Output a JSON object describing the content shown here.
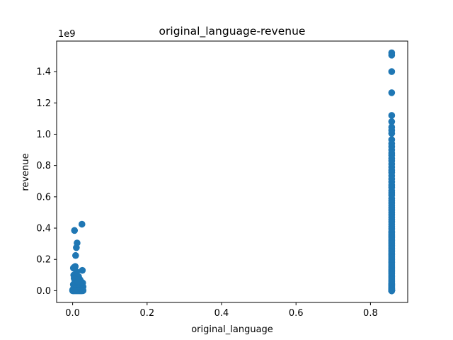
{
  "chart_data": {
    "type": "scatter",
    "title": "original_language-revenue",
    "xlabel": "original_language",
    "ylabel": "revenue",
    "y_multiplier_label": "1e9",
    "xlim": [
      -0.043,
      0.9
    ],
    "ylim": [
      -0.075,
      1.595
    ],
    "x_ticks": [
      0.0,
      0.2,
      0.4,
      0.6,
      0.8
    ],
    "x_tick_labels": [
      "0.0",
      "0.2",
      "0.4",
      "0.6",
      "0.8"
    ],
    "y_ticks": [
      0.0,
      0.2,
      0.4,
      0.6,
      0.8,
      1.0,
      1.2,
      1.4
    ],
    "y_tick_labels": [
      "0.0",
      "0.2",
      "0.4",
      "0.6",
      "0.8",
      "1.0",
      "1.2",
      "1.4"
    ],
    "grid": false,
    "marker_color": "#1f77b4",
    "y_unit_scale": 1000000000,
    "series": [
      {
        "x": [
          0.005,
          0.012,
          0.025,
          0.01,
          0.008,
          0.004,
          0.007,
          0.026,
          0.002,
          0.003,
          0.006,
          0.009,
          0.011,
          0.014,
          0.016,
          0.018,
          0.02,
          0.022,
          0.024,
          0.027,
          0.004,
          0.006,
          0.008,
          0.01,
          0.012,
          0.014,
          0.016,
          0.018,
          0.02,
          0.022,
          0.024,
          0.026,
          0.028,
          0.002,
          0.005,
          0.007,
          0.009,
          0.011,
          0.013,
          0.015,
          0.017,
          0.019,
          0.021,
          0.023,
          0.025,
          0.027,
          0.003,
          0.006,
          0.01,
          0.015,
          0.02,
          0.025,
          0.0,
          0.001,
          0.004,
          0.008,
          0.012,
          0.016,
          0.018,
          0.022,
          0.026,
          0.028,
          0.013,
          0.017,
          0.021,
          0.009,
          0.003,
          0.007,
          0.011,
          0.019,
          0.023,
          0.015,
          0.0,
          0.002,
          0.005,
          0.024,
          0.027,
          0.014
        ],
        "y": [
          0.385,
          0.305,
          0.425,
          0.275,
          0.225,
          0.15,
          0.155,
          0.13,
          0.145,
          0.1,
          0.095,
          0.11,
          0.12,
          0.085,
          0.09,
          0.075,
          0.07,
          0.06,
          0.055,
          0.05,
          0.08,
          0.065,
          0.072,
          0.058,
          0.045,
          0.04,
          0.048,
          0.038,
          0.035,
          0.03,
          0.032,
          0.028,
          0.025,
          0.04,
          0.035,
          0.03,
          0.025,
          0.022,
          0.02,
          0.018,
          0.016,
          0.015,
          0.014,
          0.012,
          0.01,
          0.009,
          0.02,
          0.015,
          0.012,
          0.01,
          0.008,
          0.006,
          0.005,
          0.004,
          0.003,
          0.002,
          0.001,
          0.002,
          0.004,
          0.006,
          0.003,
          0.001,
          0.0,
          0.0,
          0.0,
          0.0,
          0.0,
          0.0,
          0.0,
          0.0,
          0.0,
          0.0,
          0.0,
          0.0,
          0.0,
          0.0,
          0.0,
          0.06
        ]
      },
      {
        "x": [
          0.857,
          0.857,
          0.857,
          0.857,
          0.857,
          0.857,
          0.857,
          0.857,
          0.857,
          0.857,
          0.857,
          0.857,
          0.857,
          0.857,
          0.857,
          0.857,
          0.857,
          0.857,
          0.857,
          0.857,
          0.857,
          0.857,
          0.857,
          0.857,
          0.857,
          0.857,
          0.857,
          0.857,
          0.857,
          0.857,
          0.857,
          0.857,
          0.857,
          0.857,
          0.857,
          0.857,
          0.857,
          0.857,
          0.857,
          0.857,
          0.857,
          0.857,
          0.857,
          0.857,
          0.857,
          0.857,
          0.857,
          0.857,
          0.857,
          0.857,
          0.857,
          0.857,
          0.857,
          0.857,
          0.857,
          0.857,
          0.857,
          0.857,
          0.857,
          0.857,
          0.857,
          0.857,
          0.857,
          0.857,
          0.857,
          0.857,
          0.857,
          0.857,
          0.857,
          0.857,
          0.857,
          0.857,
          0.857,
          0.857,
          0.857,
          0.857,
          0.857,
          0.857,
          0.857,
          0.857,
          0.857,
          0.857,
          0.857,
          0.857,
          0.857,
          0.857,
          0.857,
          0.857,
          0.857,
          0.857,
          0.857,
          0.857,
          0.857,
          0.857,
          0.857,
          0.857
        ],
        "y": [
          1.52,
          1.505,
          1.4,
          1.265,
          1.12,
          1.08,
          1.045,
          1.025,
          1.005,
          0.965,
          0.94,
          0.92,
          0.9,
          0.88,
          0.865,
          0.845,
          0.83,
          0.81,
          0.79,
          0.77,
          0.755,
          0.735,
          0.715,
          0.695,
          0.675,
          0.66,
          0.64,
          0.625,
          0.61,
          0.59,
          0.575,
          0.56,
          0.545,
          0.53,
          0.515,
          0.5,
          0.485,
          0.47,
          0.455,
          0.44,
          0.425,
          0.41,
          0.395,
          0.38,
          0.37,
          0.36,
          0.35,
          0.34,
          0.33,
          0.32,
          0.31,
          0.3,
          0.29,
          0.28,
          0.27,
          0.26,
          0.25,
          0.24,
          0.23,
          0.22,
          0.21,
          0.2,
          0.19,
          0.18,
          0.17,
          0.16,
          0.15,
          0.14,
          0.13,
          0.12,
          0.11,
          0.1,
          0.09,
          0.08,
          0.07,
          0.06,
          0.05,
          0.045,
          0.04,
          0.035,
          0.03,
          0.025,
          0.02,
          0.016,
          0.012,
          0.008,
          0.005,
          0.003,
          0.001,
          0.0,
          0.0,
          0.0,
          0.0,
          0.0,
          0.0,
          0.0
        ]
      }
    ]
  }
}
